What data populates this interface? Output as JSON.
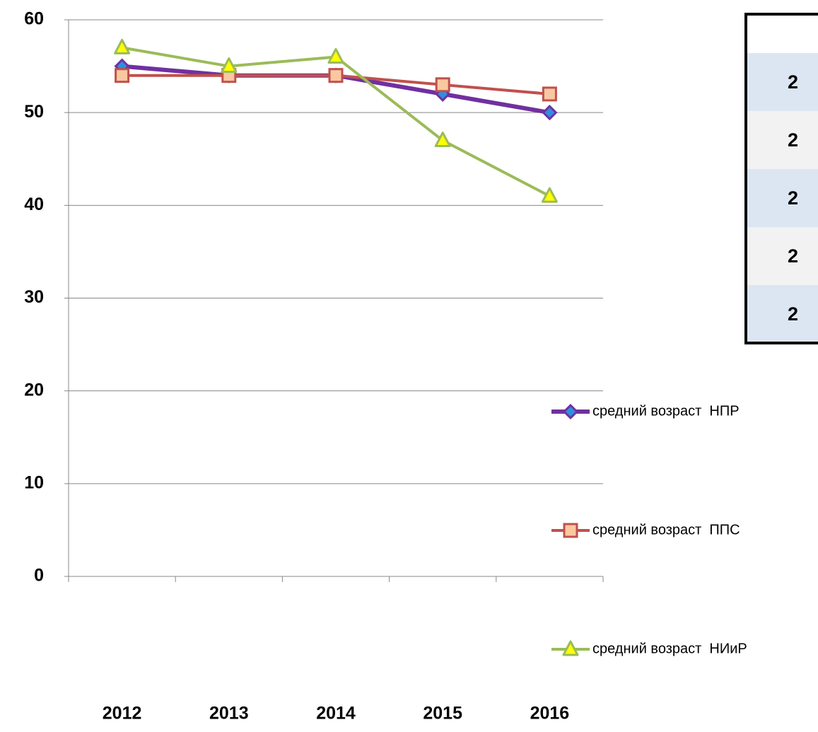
{
  "chart_data": {
    "type": "line",
    "categories": [
      "2012",
      "2013",
      "2014",
      "2015",
      "2016"
    ],
    "series": [
      {
        "name": "средний возраст  НПР",
        "color": "#7030a0",
        "marker": "diamond",
        "marker_color": "#2e8fe0",
        "values": [
          55,
          54,
          54,
          52,
          50
        ]
      },
      {
        "name": "средний возраст  ППС",
        "color": "#c0504d",
        "marker": "square",
        "marker_color": "#fac8a0",
        "values": [
          54,
          54,
          54,
          53,
          52
        ]
      },
      {
        "name": "средний возраст  НИиР",
        "color": "#9bbb59",
        "marker": "triangle",
        "marker_color": "#ffff00",
        "values": [
          57,
          55,
          56,
          47,
          41
        ]
      }
    ],
    "ylim": [
      0,
      60
    ],
    "yticks": [
      0,
      10,
      20,
      30,
      40,
      50,
      60
    ],
    "grid": true,
    "legend": "right"
  },
  "table": {
    "rows": [
      "2",
      "2",
      "2",
      "2",
      "2"
    ]
  }
}
